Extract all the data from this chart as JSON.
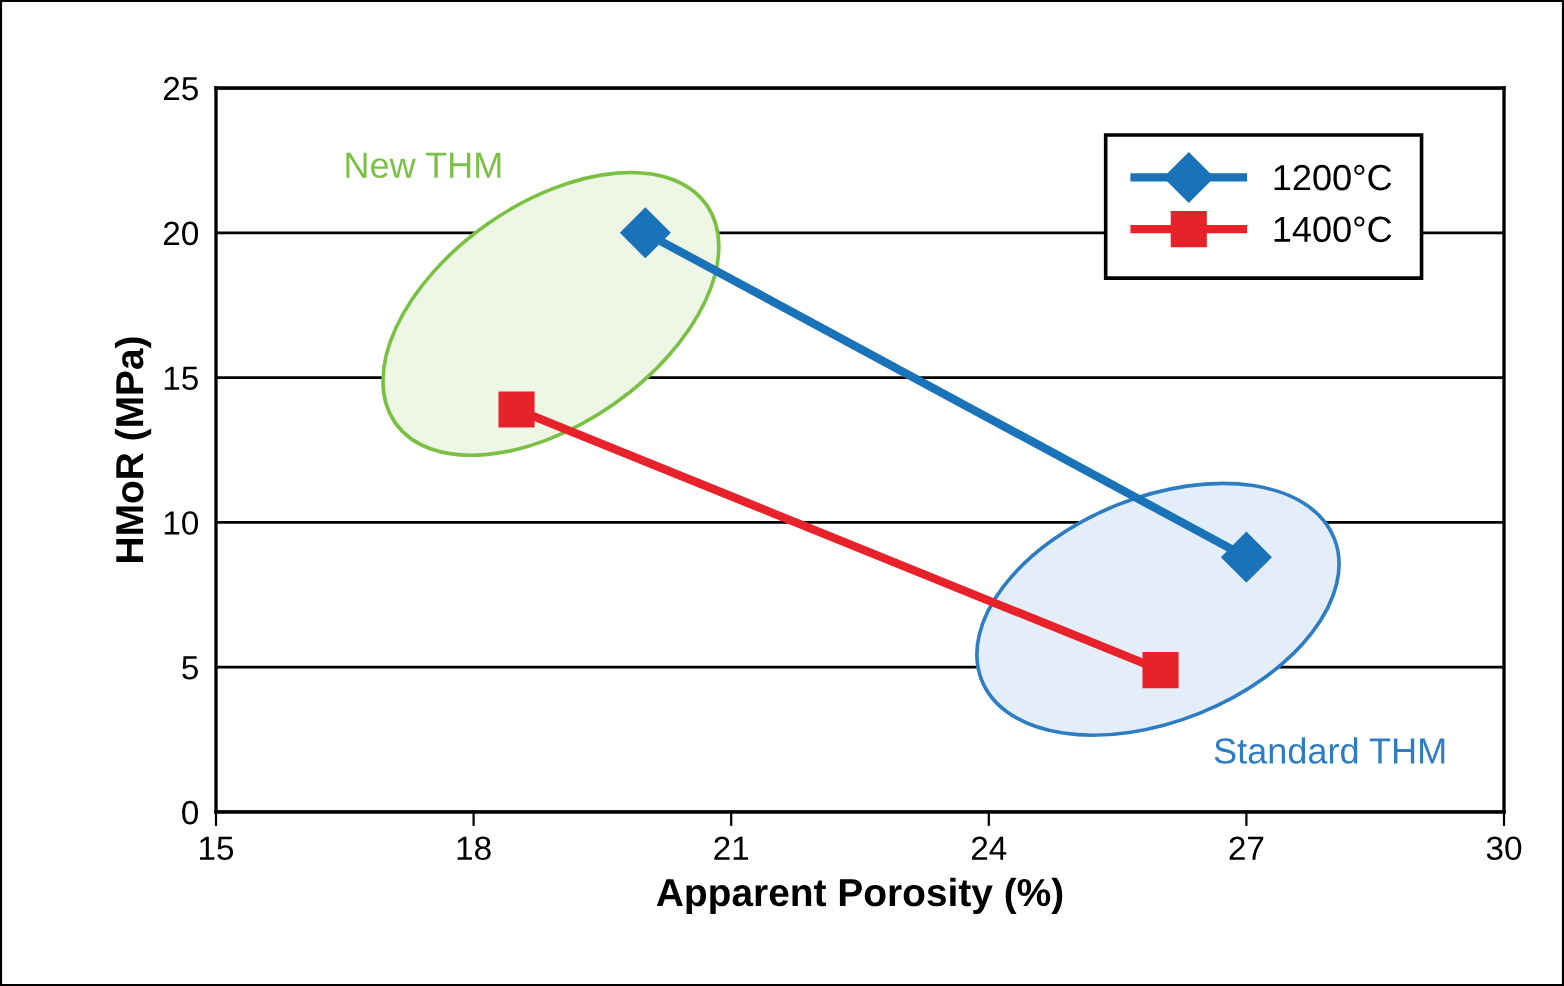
{
  "chart_data": {
    "type": "line",
    "xlabel": "Apparent Porosity (%)",
    "ylabel": "HMoR (MPa)",
    "xlim": [
      15,
      30
    ],
    "xticks": [
      15,
      18,
      21,
      24,
      27,
      30
    ],
    "ylim": [
      0,
      25
    ],
    "yticks": [
      0,
      5,
      10,
      15,
      20,
      25
    ],
    "grid": "y",
    "legend": "top right",
    "series": [
      {
        "name": "1200°C",
        "color": "#1a72b9",
        "marker": "diamond",
        "x": [
          20,
          27
        ],
        "values": [
          20,
          8.8
        ]
      },
      {
        "name": "1400°C",
        "color": "#e8222a",
        "marker": "square",
        "x": [
          18.5,
          26
        ],
        "values": [
          13.9,
          4.9
        ]
      }
    ],
    "annotations": [
      "New THM",
      "Standard THM"
    ]
  }
}
